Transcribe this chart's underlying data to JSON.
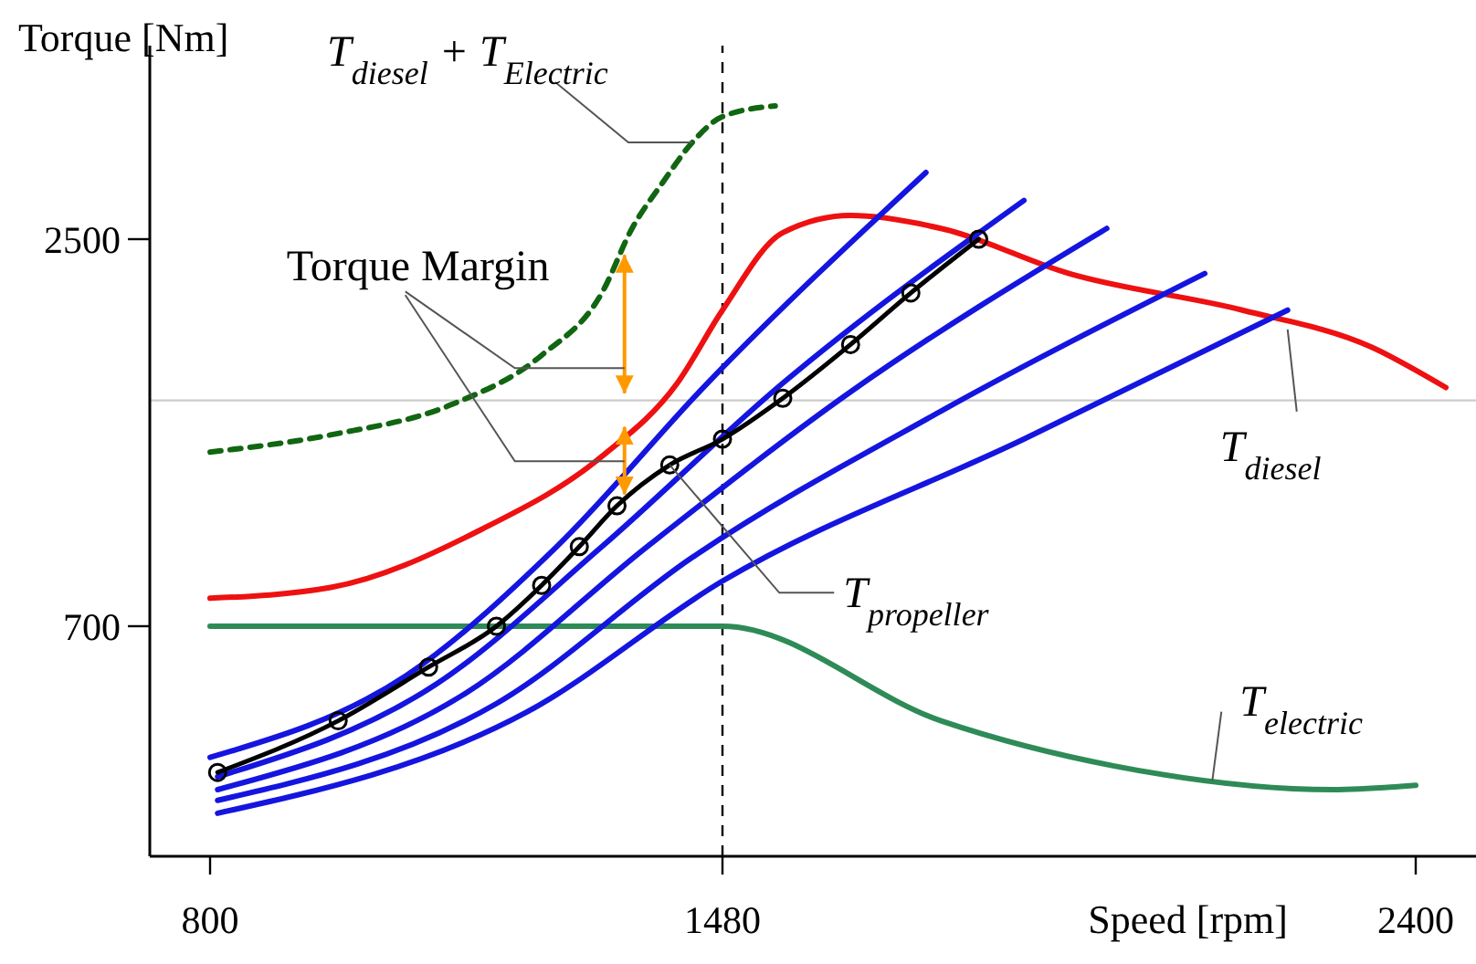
{
  "chart_data": {
    "type": "line",
    "xlabel": "Speed [rpm]",
    "ylabel": "Torque [Nm]",
    "xlim": [
      720,
      2480
    ],
    "ylim": [
      -370,
      3400
    ],
    "xticks": [
      800,
      1480,
      2400
    ],
    "yticks": [
      700,
      2500
    ],
    "grid": false,
    "marker": "none",
    "line_style": "solid",
    "series": [
      {
        "color": "#ee1111",
        "x": [
          800,
          960,
          1160,
          1320,
          1420,
          1480,
          1560,
          1650,
          1770,
          1940,
          2170,
          2340,
          2440
        ],
        "values": [
          830,
          880,
          1150,
          1490,
          1830,
          2170,
          2530,
          2610,
          2550,
          2340,
          2170,
          2000,
          1810
        ]
      },
      {
        "color": "#116611",
        "line_style": "dashed",
        "x": [
          800,
          960,
          1120,
          1240,
          1320,
          1360,
          1400,
          1440,
          1480,
          1550
        ],
        "values": [
          1510,
          1590,
          1730,
          1960,
          2250,
          2550,
          2760,
          2950,
          3070,
          3120
        ]
      },
      {
        "color": "#2e8b57",
        "x": [
          800,
          1480,
          1770,
          2000,
          2290,
          2400
        ],
        "values": [
          700,
          700,
          260,
          50,
          -60,
          -40
        ]
      },
      {
        "color": "#1515e0",
        "x": [
          800,
          1060,
          1260,
          1460,
          1750
        ],
        "values": [
          90,
          470,
          1070,
          1830,
          2810
        ]
      },
      {
        "color": "#1515e0",
        "x": [
          810,
          1100,
          1320,
          1560,
          1880
        ],
        "values": [
          0,
          430,
          1070,
          1830,
          2680
        ]
      },
      {
        "color": "#1515e0",
        "x": [
          810,
          1140,
          1380,
          1650,
          1990
        ],
        "values": [
          -60,
          390,
          1070,
          1790,
          2550
        ]
      },
      {
        "color": "#1515e0",
        "x": [
          810,
          1180,
          1440,
          1770,
          2120
        ],
        "values": [
          -110,
          340,
          1020,
          1700,
          2340
        ]
      },
      {
        "color": "#1515e0",
        "x": [
          810,
          1220,
          1480,
          1880,
          2230
        ],
        "values": [
          -170,
          300,
          910,
          1570,
          2170
        ]
      },
      {
        "color": "#000000",
        "marker": "circle",
        "x": [
          810,
          970,
          1090,
          1180,
          1240,
          1290,
          1340,
          1410,
          1480,
          1560,
          1650,
          1730,
          1820
        ],
        "values": [
          20,
          260,
          510,
          700,
          890,
          1070,
          1260,
          1450,
          1570,
          1760,
          2010,
          2250,
          2500
        ]
      },
      {
        "color": "#ff9900",
        "x": [
          1350,
          1350
        ],
        "values": [
          1320,
          1620
        ]
      },
      {
        "color": "#ff9900",
        "x": [
          1350,
          1350
        ],
        "values": [
          1790,
          2420
        ]
      }
    ],
    "ref_lines": [
      {
        "axis": "y",
        "value": 1750,
        "color": "#cccccc"
      },
      {
        "axis": "x",
        "value": 1480,
        "color": "#000000",
        "line_style": "dashed"
      }
    ],
    "annotations": [
      {
        "text": "T$_{diesel}$ + T$_{Electric}$",
        "x": 1440,
        "y": 2950
      },
      {
        "text": "Torque Margin",
        "x": 1350,
        "y": 1900
      },
      {
        "text": "T$_{propeller}$",
        "x": 1410,
        "y": 1450
      },
      {
        "text": "T$_{diesel}$",
        "x": 2230,
        "y": 2080
      },
      {
        "text": "T$_{electric}$",
        "x": 2130,
        "y": -20
      }
    ]
  }
}
